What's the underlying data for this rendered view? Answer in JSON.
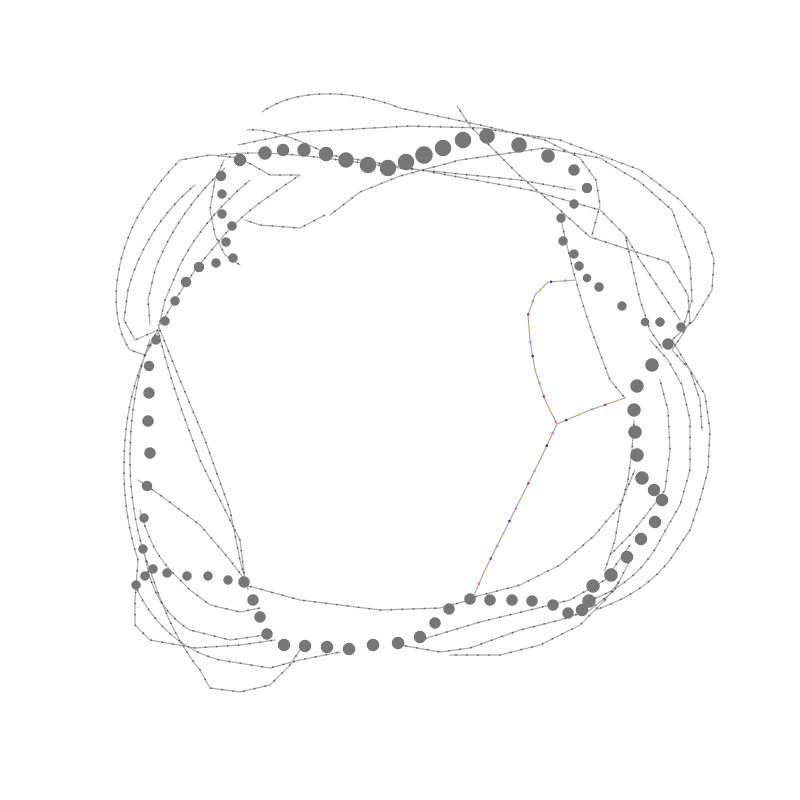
{
  "colors": {
    "background": "#ffffff",
    "track": "#a9a9a9",
    "node": "#777777",
    "markers": [
      "#ff66cc",
      "#3333cc",
      "#cccc33",
      "#66cc66",
      "#cc3333",
      "#ffcc33"
    ]
  }
}
